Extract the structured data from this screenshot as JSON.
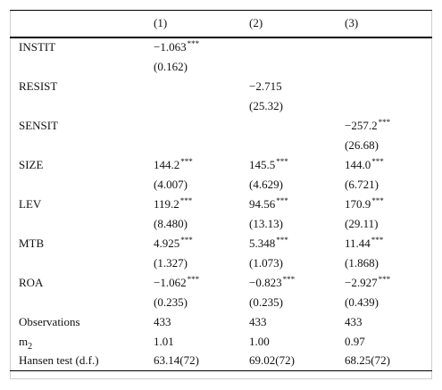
{
  "columns": [
    "(1)",
    "(2)",
    "(3)"
  ],
  "rows": [
    {
      "label": "INSTIT",
      "cells": [
        {
          "v": "−1.063",
          "s": "***"
        },
        {
          "v": "",
          "s": ""
        },
        {
          "v": "",
          "s": ""
        }
      ],
      "se": [
        "(0.162)",
        "",
        ""
      ]
    },
    {
      "label": "RESIST",
      "cells": [
        {
          "v": "",
          "s": ""
        },
        {
          "v": "−2.715",
          "s": ""
        },
        {
          "v": "",
          "s": ""
        }
      ],
      "se": [
        "",
        "(25.32)",
        ""
      ]
    },
    {
      "label": "SENSIT",
      "cells": [
        {
          "v": "",
          "s": ""
        },
        {
          "v": "",
          "s": ""
        },
        {
          "v": "−257.2",
          "s": "***"
        }
      ],
      "se": [
        "",
        "",
        "(26.68)"
      ]
    },
    {
      "label": "SIZE",
      "cells": [
        {
          "v": "144.2",
          "s": "***"
        },
        {
          "v": "145.5",
          "s": "***"
        },
        {
          "v": "144.0",
          "s": "***"
        }
      ],
      "se": [
        "(4.007)",
        "(4.629)",
        "(6.721)"
      ]
    },
    {
      "label": "LEV",
      "cells": [
        {
          "v": "119.2",
          "s": "***"
        },
        {
          "v": "94.56",
          "s": "***"
        },
        {
          "v": "170.9",
          "s": "***"
        }
      ],
      "se": [
        "(8.480)",
        "(13.13)",
        "(29.11)"
      ]
    },
    {
      "label": "MTB",
      "cells": [
        {
          "v": "4.925",
          "s": "***"
        },
        {
          "v": "5.348",
          "s": "***"
        },
        {
          "v": "11.44",
          "s": "***"
        }
      ],
      "se": [
        "(1.327)",
        "(1.073)",
        "(1.868)"
      ]
    },
    {
      "label": "ROA",
      "cells": [
        {
          "v": "−1.062",
          "s": "***"
        },
        {
          "v": "−0.823",
          "s": "***"
        },
        {
          "v": "−2.927",
          "s": "***"
        }
      ],
      "se": [
        "(0.235)",
        "(0.235)",
        "(0.439)"
      ]
    }
  ],
  "stats": [
    {
      "label": "Observations",
      "values": [
        "433",
        "433",
        "433"
      ]
    },
    {
      "label_main": "m",
      "label_sub": "2",
      "values": [
        "1.01",
        "1.00",
        "0.97"
      ]
    },
    {
      "label": "Hansen test (d.f.)",
      "values": [
        "63.14(72)",
        "69.02(72)",
        "68.25(72)"
      ]
    }
  ]
}
